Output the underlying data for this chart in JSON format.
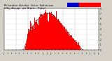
{
  "title": "Milwaukee Weather Solar Radiation & Day Average per Minute (Today)",
  "bg_color": "#d4d0c8",
  "plot_bg": "#ffffff",
  "bar_color": "#ff0000",
  "grid_color": "#888888",
  "legend_blue": "#0000cc",
  "legend_red": "#ff0000",
  "ylim": [
    0,
    800
  ],
  "num_points": 1440,
  "title_fontsize": 2.8,
  "tick_fontsize": 2.2
}
